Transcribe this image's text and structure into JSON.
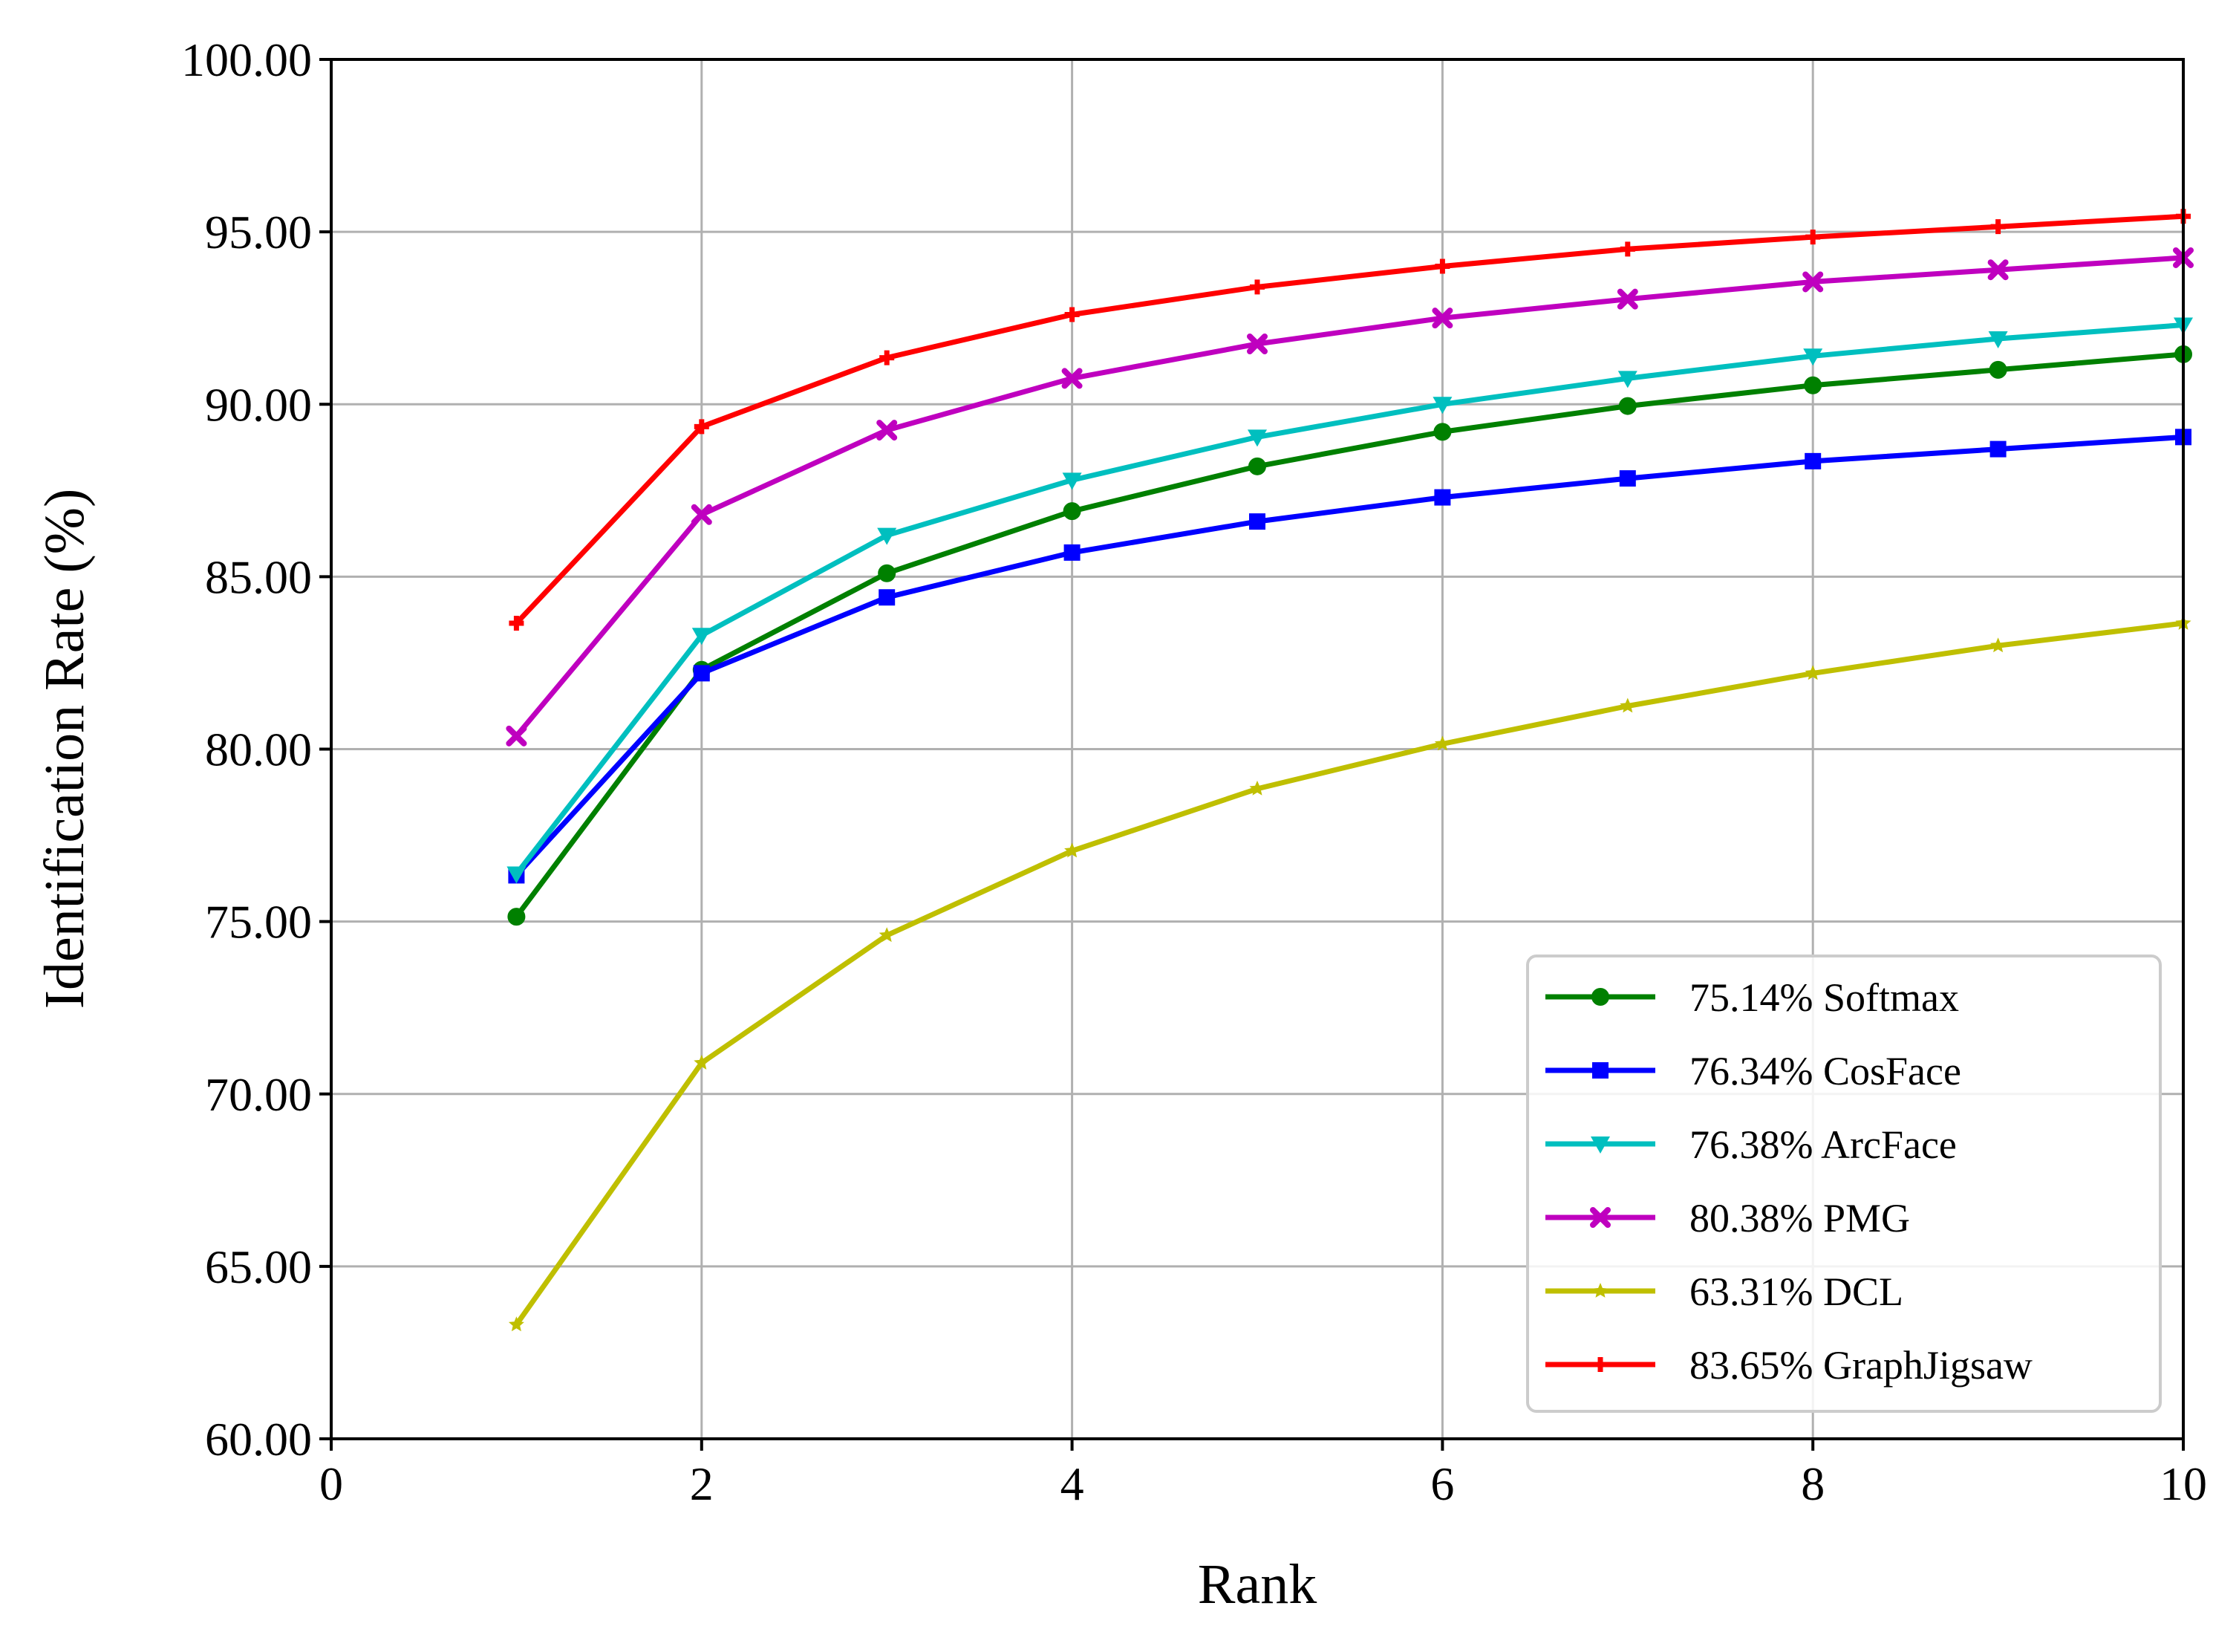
{
  "chart_data": {
    "type": "line",
    "title": "",
    "xlabel": "Rank",
    "ylabel": "Identification Rate (%)",
    "xlim": [
      0,
      10
    ],
    "ylim": [
      60,
      100
    ],
    "xticks": [
      0,
      2,
      4,
      6,
      8,
      10
    ],
    "xtick_labels": [
      "0",
      "2",
      "4",
      "6",
      "8",
      "10"
    ],
    "yticks": [
      60,
      65,
      70,
      75,
      80,
      85,
      90,
      95,
      100
    ],
    "ytick_labels": [
      "60.00",
      "65.00",
      "70.00",
      "75.00",
      "80.00",
      "85.00",
      "90.00",
      "95.00",
      "100.00"
    ],
    "grid": true,
    "legend_position": "lower-right",
    "x": [
      1,
      2,
      3,
      4,
      5,
      6,
      7,
      8,
      9,
      10
    ],
    "series": [
      {
        "name": "75.14% Softmax",
        "color": "#008000",
        "marker": "circle",
        "values": [
          75.14,
          82.3,
          85.1,
          86.9,
          88.2,
          89.2,
          89.95,
          90.55,
          91.0,
          91.45
        ]
      },
      {
        "name": "76.34% CosFace",
        "color": "#0000ff",
        "marker": "square",
        "values": [
          76.34,
          82.2,
          84.4,
          85.7,
          86.6,
          87.3,
          87.85,
          88.35,
          88.7,
          89.05
        ]
      },
      {
        "name": "76.38% ArcFace",
        "color": "#00bfbf",
        "marker": "triangle-down",
        "values": [
          76.38,
          83.3,
          86.2,
          87.8,
          89.05,
          90.0,
          90.75,
          91.4,
          91.9,
          92.3
        ]
      },
      {
        "name": "80.38% PMG",
        "color": "#bf00bf",
        "marker": "x",
        "values": [
          80.38,
          86.8,
          89.25,
          90.75,
          91.75,
          92.5,
          93.05,
          93.55,
          93.9,
          94.25
        ]
      },
      {
        "name": "63.31% DCL",
        "color": "#bfbf00",
        "marker": "star",
        "values": [
          63.31,
          70.9,
          74.6,
          77.05,
          78.85,
          80.15,
          81.25,
          82.2,
          83.0,
          83.65
        ]
      },
      {
        "name": "83.65% GraphJigsaw",
        "color": "#ff0000",
        "marker": "plus",
        "values": [
          83.65,
          89.35,
          91.35,
          92.6,
          93.4,
          94.0,
          94.5,
          94.85,
          95.15,
          95.45
        ]
      }
    ]
  }
}
